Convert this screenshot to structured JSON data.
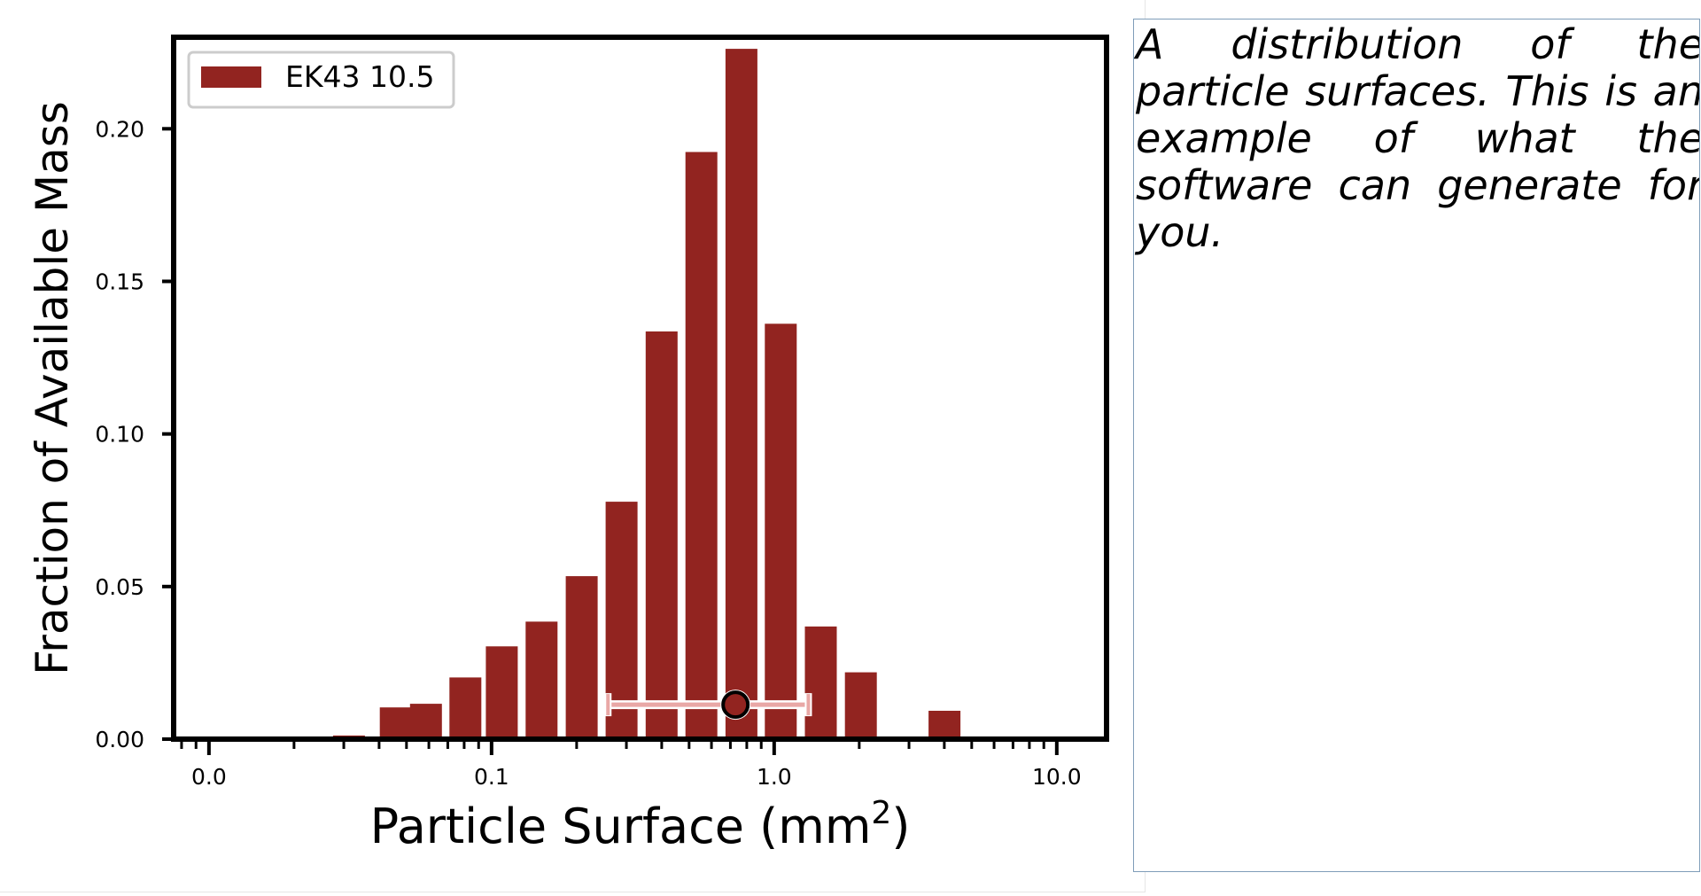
{
  "chart_data": {
    "type": "bar",
    "xlabel": "Particle Surface (mm",
    "xlabel_superscript": "2",
    "xlabel_suffix": ")",
    "ylabel": "Fraction of Available Mass",
    "xscale": "log",
    "xlim": [
      0.0075,
      15
    ],
    "ylim": [
      0,
      0.23
    ],
    "grid": false,
    "legend_position": "top-left",
    "xticks": [
      {
        "value": 0.01,
        "label": "0.0"
      },
      {
        "value": 0.1,
        "label": "0.1"
      },
      {
        "value": 1.0,
        "label": "1.0"
      },
      {
        "value": 10.0,
        "label": "10.0"
      }
    ],
    "yticks": [
      {
        "value": 0.0,
        "label": "0.00"
      },
      {
        "value": 0.05,
        "label": "0.05"
      },
      {
        "value": 0.1,
        "label": "0.10"
      },
      {
        "value": 0.15,
        "label": "0.15"
      },
      {
        "value": 0.2,
        "label": "0.20"
      }
    ],
    "series": [
      {
        "name": "EK43 10.5",
        "color": "#922420",
        "bar_centers": [
          0.0313,
          0.0458,
          0.0586,
          0.0808,
          0.1087,
          0.1503,
          0.2084,
          0.2884,
          0.3997,
          0.5527,
          0.7657,
          1.0551,
          1.4624,
          2.0266,
          4.0052
        ],
        "values": [
          0.0012,
          0.0104,
          0.0116,
          0.0202,
          0.0304,
          0.0385,
          0.0534,
          0.0778,
          0.1336,
          0.1924,
          0.2262,
          0.1361,
          0.0369,
          0.0219,
          0.0093
        ]
      }
    ],
    "summary_marker": {
      "center": 0.7297,
      "value": 0.0113,
      "lower": 0.2582,
      "upper": 1.3215,
      "fill_color": "#922420",
      "bar_color": "#e9a8a6"
    }
  },
  "caption": {
    "text": "A distribution of the particle surfaces. This is an example of what the software can generate for you."
  }
}
